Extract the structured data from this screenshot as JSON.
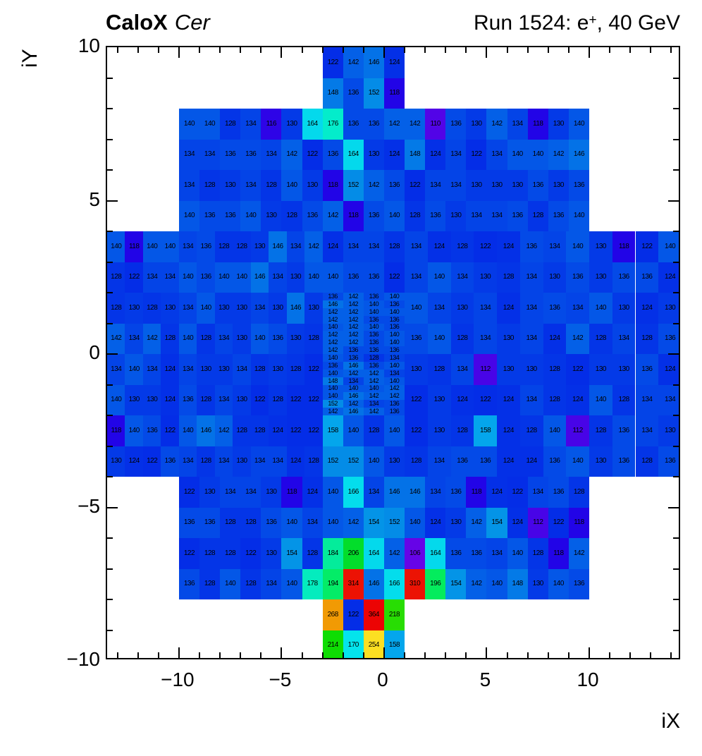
{
  "header": {
    "title_bold": "CaloX",
    "title_italic": "Cer",
    "run_title_pre": "Run 1524: e",
    "run_title_sup": "+",
    "run_title_post": ", 40 GeV"
  },
  "chart_data": {
    "type": "heatmap",
    "title": "CaloX Cer — Run 1524: e+, 40 GeV",
    "xlabel": "iX",
    "ylabel": "iY",
    "xlim": [
      -13.5,
      14.5
    ],
    "ylim": [
      -10,
      10
    ],
    "xticks": [
      -10,
      -5,
      0,
      5,
      10
    ],
    "yticks": [
      -10,
      -5,
      0,
      5,
      10
    ],
    "minor_tick_step": 1,
    "grid": false,
    "zmin": 106,
    "zmax": 364,
    "palette": "root-rainbow",
    "frame_color": "#000000",
    "background_color": "#ffffff",
    "rows": [
      {
        "y": 9,
        "x_range": [
          -3,
          1
        ],
        "values": [
          122,
          142,
          146,
          124
        ]
      },
      {
        "y": 8,
        "x_range": [
          -3,
          1
        ],
        "values": [
          148,
          136,
          152,
          118
        ]
      },
      {
        "y": 7,
        "x_range": [
          -10,
          10
        ],
        "values": [
          140,
          140,
          128,
          134,
          116,
          130,
          164,
          176,
          136,
          136,
          142,
          142,
          110,
          136,
          130,
          142,
          134,
          118,
          130,
          140
        ]
      },
      {
        "y": 6,
        "x_range": [
          -10,
          10
        ],
        "values": [
          134,
          134,
          136,
          136,
          134,
          142,
          122,
          136,
          164,
          130,
          124,
          148,
          124,
          134,
          122,
          134,
          140,
          140,
          142,
          146
        ]
      },
      {
        "y": 5,
        "x_range": [
          -10,
          10
        ],
        "values": [
          134,
          128,
          130,
          134,
          128,
          140,
          130,
          118,
          152,
          142,
          136,
          122,
          134,
          134,
          130,
          130,
          130,
          136,
          130,
          136
        ]
      },
      {
        "y": 4,
        "x_range": [
          -10,
          10
        ],
        "values": [
          140,
          136,
          136,
          140,
          130,
          128,
          136,
          142,
          118,
          136,
          140,
          128,
          136,
          130,
          134,
          134,
          136,
          128,
          136,
          140
        ]
      },
      {
        "y": 3,
        "x_range": [
          -13.5,
          -3
        ],
        "values": [
          140,
          118,
          140,
          140,
          134,
          136,
          128,
          128,
          130,
          146,
          134,
          142
        ]
      },
      {
        "y": 3,
        "x_range": [
          -3,
          1
        ],
        "values": [
          124,
          134,
          134,
          128
        ]
      },
      {
        "y": 3,
        "x_range": [
          1,
          14.5
        ],
        "values": [
          134,
          124,
          128,
          122,
          124,
          136,
          134,
          140,
          130,
          118,
          122,
          140
        ]
      },
      {
        "y": 2,
        "x_range": [
          -13.5,
          -3
        ],
        "values": [
          128,
          122,
          134,
          134,
          140,
          136,
          140,
          140,
          146,
          134,
          130,
          140
        ]
      },
      {
        "y": 2,
        "x_range": [
          -3,
          1
        ],
        "values": [
          140,
          136,
          136,
          122
        ]
      },
      {
        "y": 2,
        "x_range": [
          1,
          14.5
        ],
        "values": [
          134,
          140,
          134,
          130,
          128,
          134,
          130,
          136,
          130,
          136,
          136,
          124
        ]
      },
      {
        "y": 1,
        "x_range": [
          -13.5,
          -3
        ],
        "values": [
          128,
          130,
          128,
          130,
          134,
          140,
          130,
          130,
          134,
          130,
          146,
          130
        ]
      },
      {
        "y": 1,
        "x_range": [
          1,
          14.5
        ],
        "values": [
          140,
          134,
          130,
          134,
          124,
          134,
          136,
          134,
          140,
          130,
          124,
          130
        ]
      },
      {
        "y": 0,
        "x_range": [
          -13.5,
          -3
        ],
        "values": [
          142,
          134,
          142,
          128,
          140,
          128,
          134,
          130,
          140,
          136,
          130,
          128
        ]
      },
      {
        "y": 0,
        "x_range": [
          1,
          14.5
        ],
        "values": [
          136,
          140,
          128,
          134,
          130,
          134,
          124,
          142,
          128,
          134,
          128,
          136
        ]
      },
      {
        "y": -1,
        "x_range": [
          -13.5,
          -3
        ],
        "values": [
          134,
          140,
          134,
          124,
          134,
          130,
          130,
          134,
          128,
          130,
          128,
          122
        ]
      },
      {
        "y": -1,
        "x_range": [
          1,
          14.5
        ],
        "values": [
          130,
          128,
          134,
          112,
          130,
          130,
          128,
          122,
          130,
          130,
          136,
          124
        ]
      },
      {
        "y": -2,
        "x_range": [
          -13.5,
          -3
        ],
        "values": [
          140,
          130,
          130,
          124,
          136,
          128,
          134,
          130,
          122,
          128,
          122,
          122
        ]
      },
      {
        "y": -2,
        "x_range": [
          1,
          14.5
        ],
        "values": [
          122,
          130,
          124,
          122,
          124,
          134,
          128,
          124,
          140,
          128,
          134,
          134
        ]
      },
      {
        "y": -3,
        "x_range": [
          -13.5,
          -3
        ],
        "values": [
          118,
          140,
          136,
          122,
          140,
          146,
          142,
          128,
          128,
          124,
          122,
          122
        ]
      },
      {
        "y": -3,
        "x_range": [
          -3,
          1
        ],
        "values": [
          158,
          140,
          128,
          140
        ]
      },
      {
        "y": -3,
        "x_range": [
          1,
          14.5
        ],
        "values": [
          122,
          130,
          128,
          158,
          124,
          128,
          140,
          112,
          128,
          136,
          134,
          130
        ]
      },
      {
        "y": -4,
        "x_range": [
          -13.5,
          -3
        ],
        "values": [
          130,
          124,
          122,
          136,
          134,
          128,
          134,
          130,
          134,
          134,
          124,
          128
        ]
      },
      {
        "y": -4,
        "x_range": [
          -3,
          1
        ],
        "values": [
          152,
          152,
          140,
          130
        ]
      },
      {
        "y": -4,
        "x_range": [
          1,
          14.5
        ],
        "values": [
          128,
          134,
          136,
          136,
          124,
          124,
          136,
          140,
          130,
          136,
          128,
          136
        ]
      },
      {
        "y": -5,
        "x_range": [
          -10,
          10
        ],
        "values": [
          122,
          130,
          134,
          134,
          130,
          118,
          124,
          140,
          166,
          134,
          146,
          146,
          134,
          136,
          118,
          124,
          122,
          134,
          136,
          128
        ]
      },
      {
        "y": -6,
        "x_range": [
          -10,
          10
        ],
        "values": [
          136,
          136,
          128,
          128,
          136,
          140,
          134,
          140,
          142,
          154,
          152,
          140,
          124,
          130,
          142,
          154,
          124,
          112,
          122,
          118
        ]
      },
      {
        "y": -7,
        "x_range": [
          -10,
          10
        ],
        "values": [
          122,
          128,
          128,
          122,
          130,
          154,
          128,
          184,
          206,
          164,
          142,
          106,
          164,
          136,
          136,
          134,
          140,
          128,
          118,
          142
        ]
      },
      {
        "y": -8,
        "x_range": [
          -10,
          10
        ],
        "values": [
          136,
          128,
          140,
          128,
          134,
          140,
          178,
          194,
          314,
          146,
          166,
          310,
          196,
          154,
          142,
          140,
          148,
          130,
          140,
          136
        ]
      },
      {
        "y": -9,
        "x_range": [
          -3,
          1
        ],
        "values": [
          268,
          122,
          364,
          218
        ]
      },
      {
        "y": -10,
        "x_range": [
          -3,
          1
        ],
        "values": [
          214,
          170,
          254,
          158
        ]
      }
    ],
    "fine_region": {
      "x_range": [
        -3,
        1
      ],
      "y_top": 2,
      "cell_h": 0.25,
      "values": [
        [
          136,
          142,
          136,
          140
        ],
        [
          146,
          142,
          140,
          136
        ],
        [
          142,
          142,
          140,
          140
        ],
        [
          142,
          142,
          136,
          136
        ],
        [
          140,
          142,
          140,
          136
        ],
        [
          142,
          142,
          136,
          140
        ],
        [
          142,
          142,
          136,
          140
        ],
        [
          142,
          136,
          136,
          136
        ],
        [
          140,
          136,
          128,
          134
        ],
        [
          136,
          146,
          136,
          140
        ],
        [
          140,
          142,
          142,
          134
        ],
        [
          148,
          134,
          142,
          140
        ],
        [
          140,
          140,
          140,
          142
        ],
        [
          140,
          146,
          142,
          142
        ],
        [
          152,
          142,
          134,
          136
        ],
        [
          142,
          146,
          142,
          136
        ]
      ]
    }
  }
}
